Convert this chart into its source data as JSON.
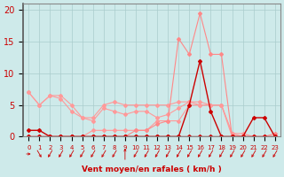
{
  "x_labels": [
    "0",
    "1",
    "2",
    "3",
    "4",
    "5",
    "6",
    "7",
    "8",
    "9",
    "10",
    "11",
    "12",
    "13",
    "14",
    "15",
    "16",
    "17",
    "18",
    "19",
    "20",
    "21",
    "22",
    "23"
  ],
  "x_values": [
    0,
    1,
    2,
    3,
    4,
    5,
    6,
    7,
    8,
    9,
    10,
    11,
    12,
    13,
    14,
    15,
    16,
    17,
    18,
    19,
    20,
    21,
    22,
    23
  ],
  "xlabel": "Vent moyen/en rafales ( km/h )",
  "ylim": [
    0,
    21
  ],
  "yticks": [
    0,
    5,
    10,
    15,
    20
  ],
  "background_color": "#ceeaea",
  "grid_color": "#aacccc",
  "axis_color": "#888888",
  "label_color": "#cc0000",
  "series": [
    {
      "y": [
        7,
        5,
        6.5,
        6.5,
        5,
        3,
        3,
        5,
        5.5,
        5,
        5,
        5,
        5,
        5,
        5.5,
        5.5,
        5.5,
        5,
        5,
        0.5,
        0.5,
        0,
        0,
        0
      ],
      "color": "#ff9999",
      "linewidth": 0.8,
      "marker": "D",
      "markersize": 2
    },
    {
      "y": [
        7,
        5,
        6.5,
        6,
        4,
        3,
        2.5,
        4.5,
        4,
        3.5,
        4,
        4,
        3,
        3.5,
        4.5,
        5.5,
        5,
        5,
        5,
        0.5,
        0,
        0,
        0,
        0
      ],
      "color": "#ff9999",
      "linewidth": 0.8,
      "marker": "D",
      "markersize": 2
    },
    {
      "y": [
        0,
        0,
        0,
        0,
        0,
        0,
        1,
        1,
        1,
        1,
        1,
        1,
        2.5,
        2.5,
        2.5,
        5,
        5,
        5,
        5,
        0,
        0,
        0,
        0,
        0
      ],
      "color": "#ff9999",
      "linewidth": 0.8,
      "marker": "D",
      "markersize": 2
    },
    {
      "y": [
        0,
        0,
        0,
        0,
        0,
        0,
        0,
        0,
        0,
        0,
        1,
        1,
        2,
        2.5,
        15.5,
        13,
        19.5,
        13,
        13,
        0,
        0,
        0,
        0,
        0.5
      ],
      "color": "#ff8888",
      "linewidth": 0.8,
      "marker": "D",
      "markersize": 2
    },
    {
      "y": [
        0,
        0,
        0,
        0,
        0,
        0,
        0,
        0,
        0,
        0,
        0,
        0,
        0,
        0,
        0,
        0,
        0,
        0,
        0,
        0,
        0,
        0,
        0,
        0
      ],
      "color": "#cc0000",
      "linewidth": 1.0,
      "marker": "D",
      "markersize": 2
    },
    {
      "y": [
        1,
        1,
        0,
        0,
        0,
        0,
        0,
        0,
        0,
        0,
        0,
        0,
        0,
        0,
        0,
        5,
        12,
        4,
        0,
        0,
        0,
        3,
        3,
        0
      ],
      "color": "#cc0000",
      "linewidth": 1.0,
      "marker": "D",
      "markersize": 2
    }
  ],
  "arrow_angles": [
    90,
    135,
    225,
    225,
    225,
    225,
    225,
    225,
    225,
    0,
    225,
    225,
    225,
    225,
    225,
    225,
    225,
    225,
    225,
    225,
    225,
    225,
    225,
    225
  ]
}
